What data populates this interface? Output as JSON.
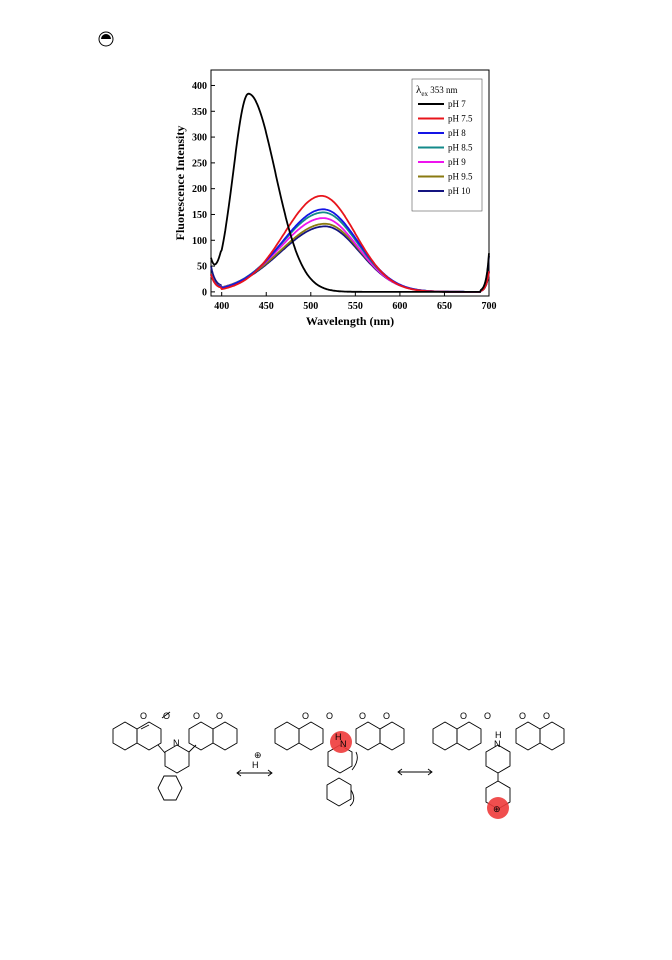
{
  "chart_data": {
    "type": "line",
    "title": "",
    "xlabel": "Wavelength (nm)",
    "ylabel": "Fluorescence Intensity",
    "xlim": [
      388,
      700
    ],
    "ylim": [
      -8,
      430
    ],
    "xticks": [
      400,
      450,
      500,
      550,
      600,
      650,
      700
    ],
    "yticks": [
      0,
      50,
      100,
      150,
      200,
      250,
      300,
      350,
      400
    ],
    "grid": false,
    "legend_position": "top-right",
    "legend_title": "λex 353 nm",
    "legend_title_main": "λ",
    "legend_title_sub": "ex",
    "legend_title_rest": " 353 nm",
    "series": [
      {
        "name": "pH 7",
        "color": "#000000",
        "peak_x": 430,
        "peak_y": 384,
        "sigma_left": 17,
        "sigma_right": 30,
        "start_y": 48,
        "end_y": 75
      },
      {
        "name": "pH 7.5",
        "color": "#e8141b",
        "peak_x": 512,
        "peak_y": 186,
        "sigma_left": 42,
        "sigma_right": 38,
        "start_y": 32,
        "end_y": 40
      },
      {
        "name": "pH 8",
        "color": "#1414e6",
        "peak_x": 514,
        "peak_y": 160,
        "sigma_left": 46,
        "sigma_right": 39,
        "start_y": 30,
        "end_y": 40
      },
      {
        "name": "pH 8.5",
        "color": "#138a8a",
        "peak_x": 514,
        "peak_y": 154,
        "sigma_left": 47,
        "sigma_right": 39,
        "start_y": 30,
        "end_y": 40
      },
      {
        "name": "pH 9",
        "color": "#ee14ee",
        "peak_x": 514,
        "peak_y": 143,
        "sigma_left": 48,
        "sigma_right": 39,
        "start_y": 29,
        "end_y": 40
      },
      {
        "name": "pH 9.5",
        "color": "#8a7a10",
        "peak_x": 516,
        "peak_y": 132,
        "sigma_left": 50,
        "sigma_right": 39,
        "start_y": 28,
        "end_y": 40
      },
      {
        "name": "pH 10",
        "color": "#141480",
        "peak_x": 516,
        "peak_y": 127,
        "sigma_left": 50,
        "sigma_right": 39,
        "start_y": 45,
        "end_y": 70
      }
    ]
  },
  "scheme": {
    "arrow_label": "H",
    "plus_symbol": "⊕",
    "nh_label": "H",
    "n_label": "N",
    "o_label": "O"
  }
}
